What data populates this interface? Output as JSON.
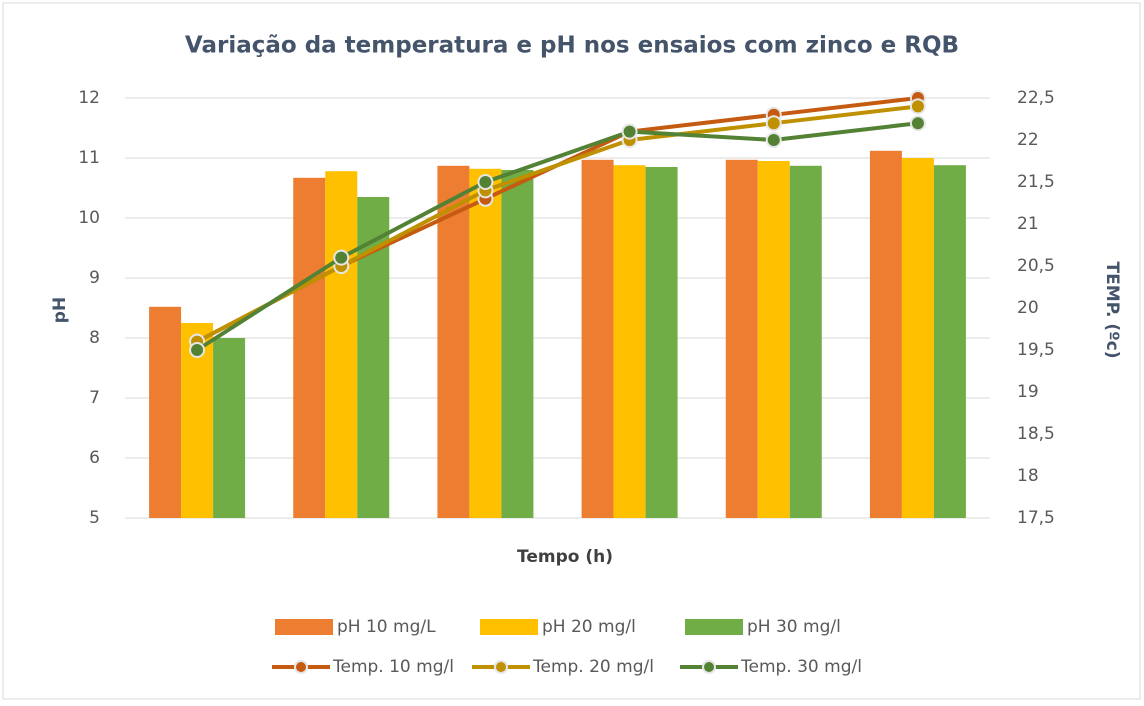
{
  "chart_data": {
    "type": "bar-line",
    "title": "Variação da temperatura e pH nos ensaios com zinco e RQB",
    "x_label": "Tempo (h)",
    "y_label": "pH",
    "y2_label": "TEMP. (ºc)",
    "categories": [
      null,
      null,
      null,
      null,
      null,
      null
    ],
    "ylim": [
      5,
      12
    ],
    "yticks": [
      5,
      6,
      7,
      8,
      9,
      10,
      11,
      12
    ],
    "y2lim": [
      17.5,
      22.5
    ],
    "y2ticks": [
      {
        "value": 17.5,
        "label": "17,5"
      },
      18,
      {
        "value": 18.5,
        "label": "18,5"
      },
      19,
      {
        "value": 19.5,
        "label": "19,5"
      },
      20,
      {
        "value": 20.5,
        "label": "20,5"
      },
      21,
      {
        "value": 21.5,
        "label": "21,5"
      },
      22,
      {
        "value": 22.5,
        "label": "22,5"
      }
    ],
    "grid": true,
    "legend": "bottom",
    "series": [
      {
        "name": "pH 10 mg/L",
        "type": "bar",
        "color": "#ed7d31",
        "values": [
          8.52,
          10.67,
          10.87,
          10.97,
          10.97,
          11.12
        ]
      },
      {
        "name": "pH 20 mg/l",
        "type": "bar",
        "color": "#ffc000",
        "values": [
          8.25,
          10.78,
          10.82,
          10.88,
          10.95,
          11.0
        ]
      },
      {
        "name": "pH 30 mg/l",
        "type": "bar",
        "color": "#70ad47",
        "values": [
          8.0,
          10.35,
          10.8,
          10.85,
          10.87,
          10.88
        ]
      },
      {
        "name": "Temp. 10 mg/l",
        "type": "line",
        "axis": "y2",
        "color": "#c55a11",
        "values": [
          19.6,
          20.5,
          21.3,
          22.1,
          22.3,
          22.5
        ]
      },
      {
        "name": "Temp. 20 mg/l",
        "type": "line",
        "axis": "y2",
        "color": "#bf9000",
        "values": [
          19.6,
          20.5,
          21.4,
          22.0,
          22.2,
          22.4
        ]
      },
      {
        "name": "Temp. 30 mg/l",
        "type": "line",
        "axis": "y2",
        "color": "#548235",
        "values": [
          19.5,
          20.6,
          21.5,
          22.1,
          22.0,
          22.2
        ]
      }
    ]
  }
}
